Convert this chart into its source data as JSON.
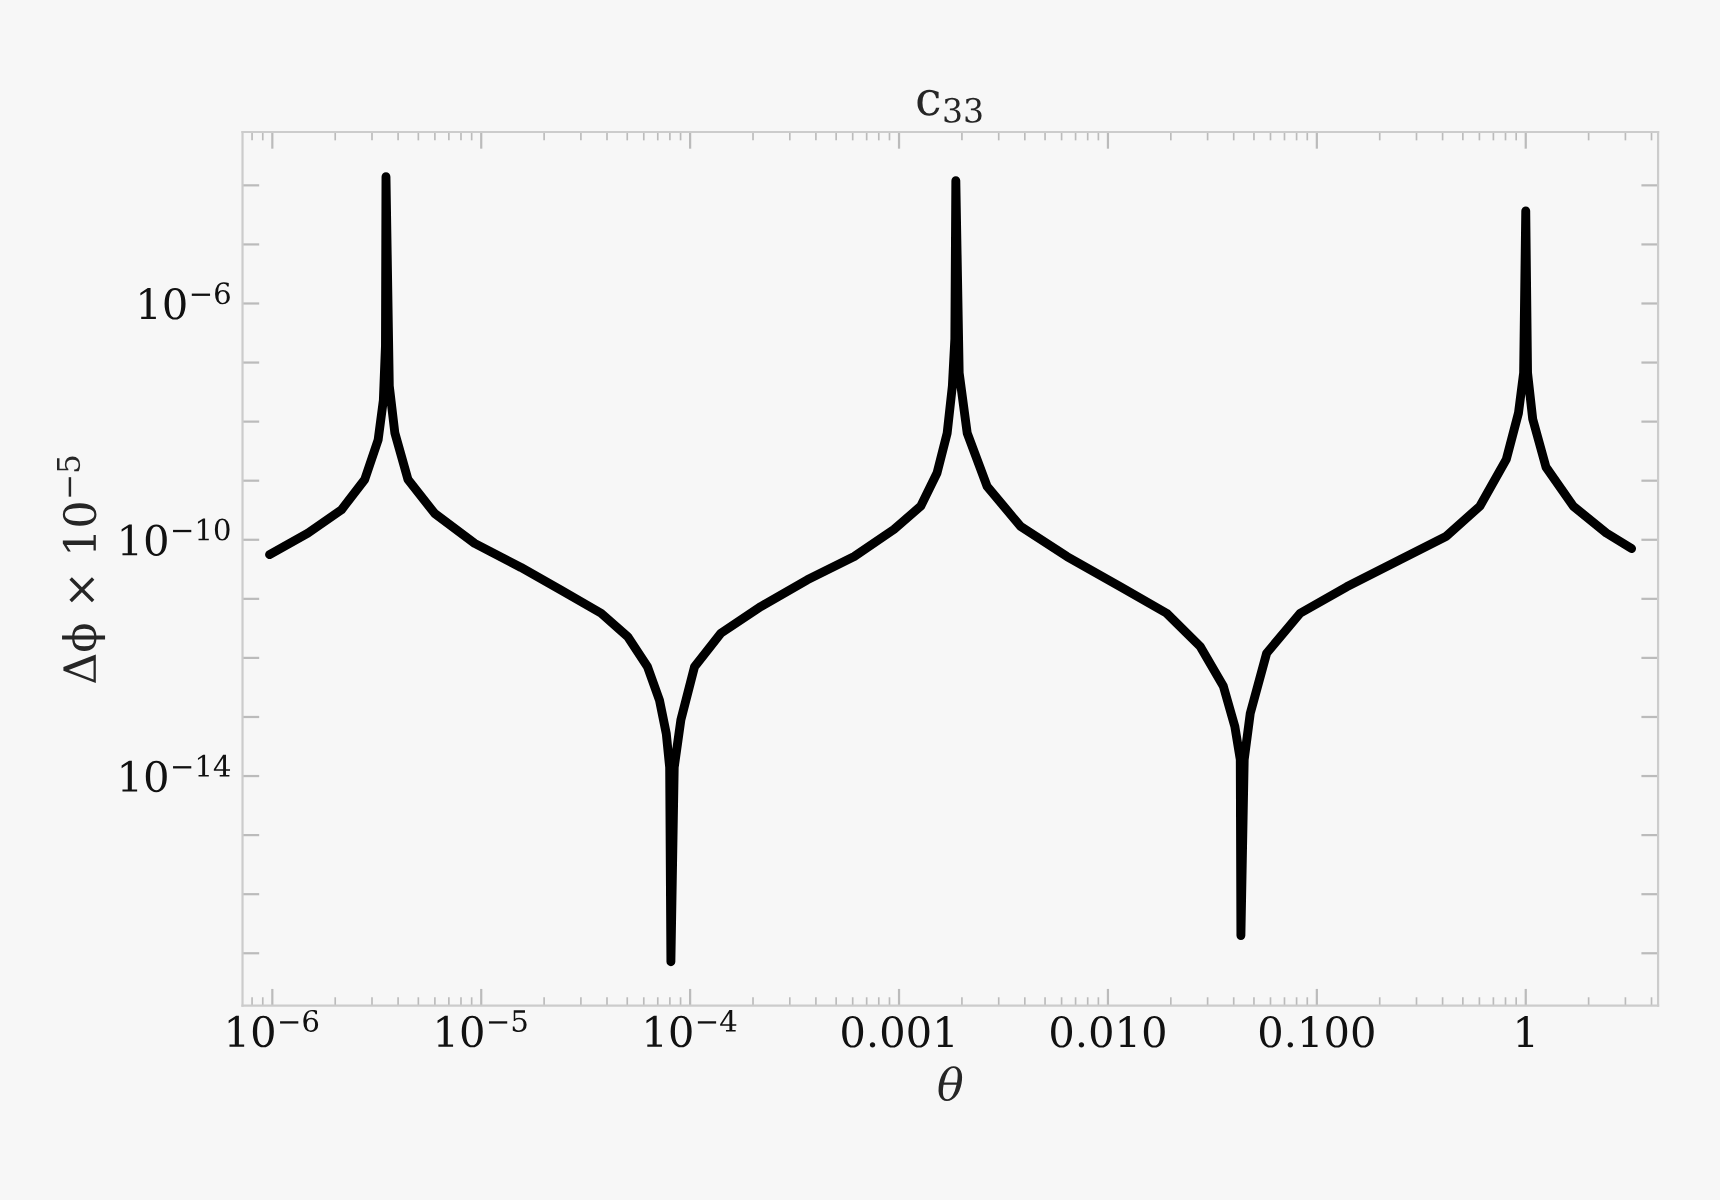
{
  "chart_data": {
    "type": "line",
    "title": "c$_{33}$",
    "xlabel": "θ",
    "ylabel": "Δϕ × 10$^{−5}$",
    "log": "xy",
    "grid": false,
    "marker": "none",
    "line_style": "solid",
    "xlim": [
      7.2e-07,
      4.3
    ],
    "ylim": [
      1.3e-18,
      0.0008
    ],
    "xticks": [
      {
        "value": 1e-06,
        "label": "10$^{−6}$"
      },
      {
        "value": 1e-05,
        "label": "10$^{−5}$"
      },
      {
        "value": 0.0001,
        "label": "10$^{−4}$"
      },
      0.001,
      {
        "value": 0.01,
        "label": "0.010"
      },
      {
        "value": 0.1,
        "label": "0.100"
      },
      1
    ],
    "yticks": [
      {
        "value": 0.0001,
        "label": null
      },
      {
        "value": 1e-05,
        "label": null
      },
      {
        "value": 1e-06,
        "label": "10$^{−6}$"
      },
      {
        "value": 1e-07,
        "label": null
      },
      {
        "value": 1e-08,
        "label": null
      },
      {
        "value": 1e-09,
        "label": null
      },
      {
        "value": 1e-10,
        "label": "10$^{−10}$"
      },
      {
        "value": 1e-11,
        "label": null
      },
      {
        "value": 1e-12,
        "label": null
      },
      {
        "value": 1e-13,
        "label": null
      },
      {
        "value": 1e-14,
        "label": "10$^{−14}$"
      },
      {
        "value": 1e-15,
        "label": null
      },
      {
        "value": 1e-16,
        "label": null
      },
      {
        "value": 1e-17,
        "label": null
      }
    ],
    "series": [
      {
        "color": "#000000",
        "x": [
          9.7e-07,
          1.48e-06,
          2.14e-06,
          2.77e-06,
          3.21e-06,
          3.4e-06,
          3.48e-06,
          3.5e-06,
          3.63e-06,
          3.86e-06,
          4.46e-06,
          5.98e-06,
          9.3e-06,
          1.55e-05,
          2.41e-05,
          3.75e-05,
          5.02e-05,
          6.25e-05,
          7.14e-05,
          7.69e-05,
          7.98e-05,
          8.09e-05,
          8.39e-05,
          9.03e-05,
          0.000105,
          0.00014,
          0.000218,
          0.000364,
          0.00061,
          0.000946,
          0.00127,
          0.00152,
          0.0017,
          0.0018,
          0.00185,
          0.00187,
          0.00194,
          0.00212,
          0.00264,
          0.00381,
          0.00637,
          0.0115,
          0.0191,
          0.0277,
          0.0357,
          0.0405,
          0.043,
          0.0433,
          0.0449,
          0.048,
          0.0575,
          0.0832,
          0.139,
          0.25,
          0.417,
          0.603,
          0.807,
          0.923,
          0.977,
          1.0,
          1.02,
          1.08,
          1.25,
          1.69,
          2.43,
          3.21
        ],
        "values": [
          5.6e-11,
          1.3e-10,
          3.2e-10,
          1.05e-09,
          4.9e-09,
          2.3e-08,
          1.9e-07,
          0.00014,
          4e-08,
          6.4e-09,
          1.05e-09,
          2.8e-10,
          8.7e-11,
          3.4e-11,
          1.4e-11,
          5.7e-12,
          2.3e-12,
          7.1e-13,
          1.9e-13,
          5.2e-14,
          1.4e-14,
          7.2e-18,
          1.4e-14,
          8.9e-14,
          7.1e-13,
          2.6e-12,
          7.4e-12,
          2.1e-11,
          5.2e-11,
          1.5e-10,
          3.7e-10,
          1.35e-09,
          6.4e-09,
          4e-08,
          2.5e-07,
          0.00012,
          6.7e-08,
          6.4e-09,
          8e-10,
          1.7e-10,
          5.2e-11,
          1.6e-11,
          5.7e-12,
          1.55e-12,
          3.3e-13,
          6.9e-14,
          1.9e-14,
          2e-17,
          1.9e-14,
          1.15e-13,
          1.2e-12,
          5.7e-12,
          1.6e-11,
          4.6e-11,
          1.15e-10,
          3.7e-10,
          2.3e-09,
          1.4e-08,
          6.7e-08,
          3.7e-05,
          6.7e-08,
          1.1e-08,
          1.7e-09,
          3.7e-10,
          1.3e-10,
          7.1e-11
        ]
      }
    ]
  }
}
